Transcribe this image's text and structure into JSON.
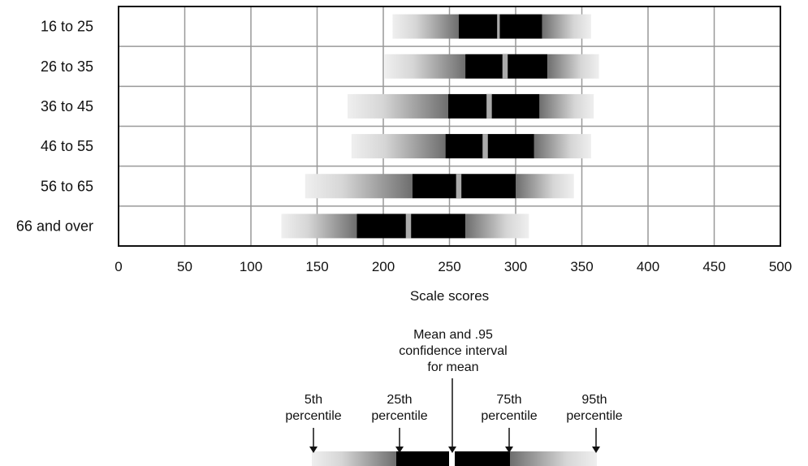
{
  "chart_data": {
    "type": "box",
    "xlabel": "Scale scores",
    "xlim": [
      0,
      500
    ],
    "xticks": [
      0,
      50,
      100,
      150,
      200,
      250,
      300,
      350,
      400,
      450,
      500
    ],
    "grid": true,
    "categories": [
      "16 to 25",
      "26 to 35",
      "36 to 45",
      "46 to 55",
      "56 to 65",
      "66 and over"
    ],
    "series": [
      {
        "category": "16 to 25",
        "p5": 207,
        "p25": 257,
        "mean": 287,
        "ci_low": 286,
        "ci_high": 288,
        "p75": 320,
        "p95": 357
      },
      {
        "category": "26 to 35",
        "p5": 201,
        "p25": 262,
        "mean": 292,
        "ci_low": 290,
        "ci_high": 294,
        "p75": 324,
        "p95": 363
      },
      {
        "category": "36 to 45",
        "p5": 173,
        "p25": 249,
        "mean": 280,
        "ci_low": 278,
        "ci_high": 282,
        "p75": 318,
        "p95": 359
      },
      {
        "category": "46 to 55",
        "p5": 176,
        "p25": 247,
        "mean": 277,
        "ci_low": 275,
        "ci_high": 279,
        "p75": 314,
        "p95": 357
      },
      {
        "category": "56 to 65",
        "p5": 141,
        "p25": 222,
        "mean": 257,
        "ci_low": 255,
        "ci_high": 259,
        "p75": 300,
        "p95": 344
      },
      {
        "category": "66 and over",
        "p5": 123,
        "p25": 180,
        "mean": 219,
        "ci_low": 217,
        "ci_high": 221,
        "p75": 262,
        "p95": 310
      }
    ],
    "colors": {
      "inner": "#000000",
      "outer_light": "#eeeeee",
      "outer_dark": "#777777",
      "mean_line": "#aaaaaa",
      "grid": "#999999"
    }
  },
  "legend": {
    "mean_label_lines": [
      "Mean and .95",
      "confidence interval",
      "for mean"
    ],
    "p5_label_lines": [
      "5th",
      "percentile"
    ],
    "p25_label_lines": [
      "25th",
      "percentile"
    ],
    "p75_label_lines": [
      "75th",
      "percentile"
    ],
    "p95_label_lines": [
      "95th",
      "percentile"
    ]
  }
}
